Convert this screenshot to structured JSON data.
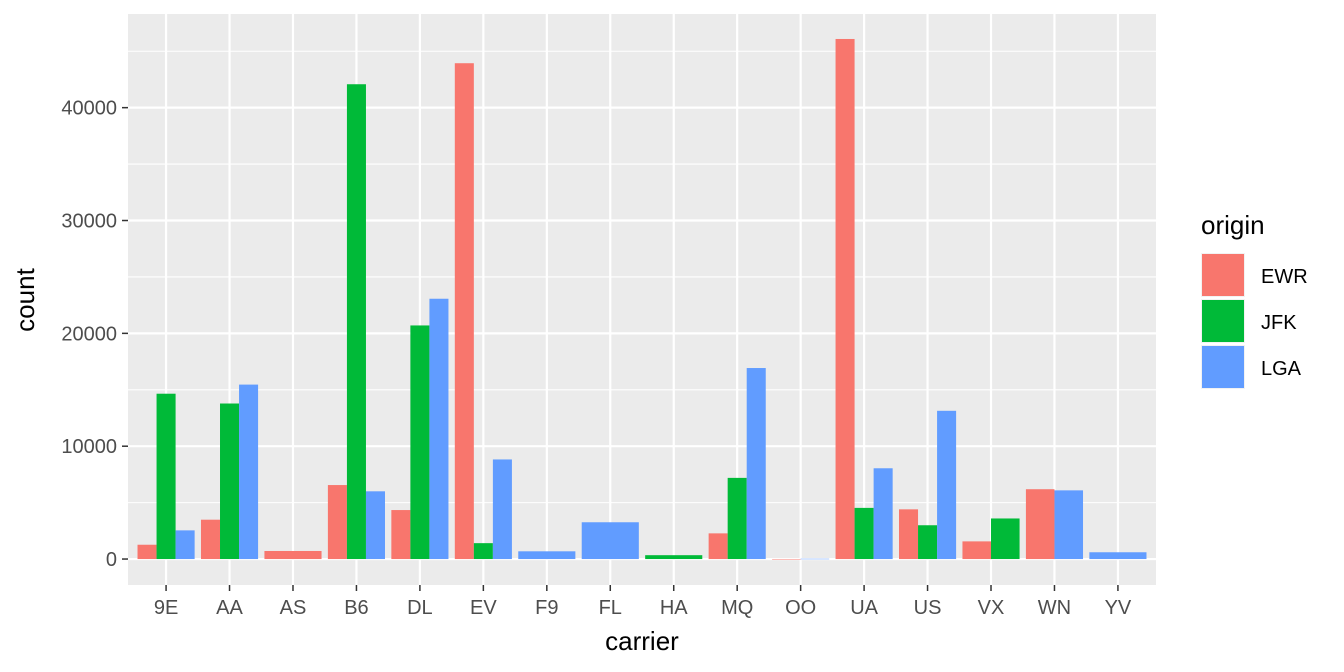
{
  "chart_data": {
    "type": "bar",
    "layout": "dodge",
    "xlabel": "carrier",
    "ylabel": "count",
    "ylim": [
      -2300,
      48300
    ],
    "yticks": [
      0,
      10000,
      20000,
      30000,
      40000
    ],
    "grid": true,
    "legend": {
      "title": "origin",
      "position": "right"
    },
    "categories": [
      "9E",
      "AA",
      "AS",
      "B6",
      "DL",
      "EV",
      "F9",
      "FL",
      "HA",
      "MQ",
      "OO",
      "UA",
      "US",
      "VX",
      "WN",
      "YV"
    ],
    "series": [
      {
        "name": "EWR",
        "color": "#F8766D",
        "values": [
          1268,
          3487,
          714,
          6557,
          4342,
          43939,
          null,
          null,
          null,
          2276,
          6,
          46087,
          4405,
          1566,
          6188,
          null
        ]
      },
      {
        "name": "JFK",
        "color": "#00BA38",
        "values": [
          14651,
          13783,
          null,
          42076,
          20701,
          1408,
          null,
          null,
          342,
          7193,
          null,
          4534,
          2995,
          3596,
          null,
          null
        ]
      },
      {
        "name": "LGA",
        "color": "#619CFF",
        "values": [
          2541,
          15459,
          null,
          6002,
          23067,
          8826,
          685,
          3260,
          null,
          16928,
          26,
          8044,
          13136,
          null,
          6087,
          601
        ]
      }
    ]
  }
}
